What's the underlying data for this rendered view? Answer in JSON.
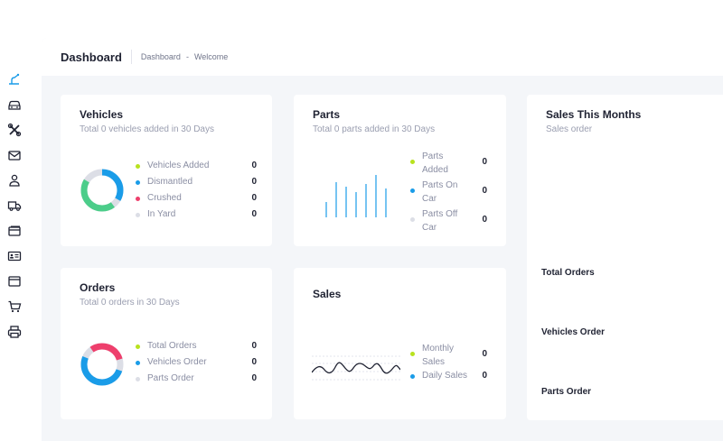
{
  "header": {
    "title": "Dashboard",
    "breadcrumb": [
      "Dashboard",
      "-",
      "Welcome"
    ]
  },
  "sidebar": {
    "icons": [
      "dashboard-icon",
      "car-icon",
      "tools-icon",
      "mail-icon",
      "user-icon",
      "truck-icon",
      "card-icon",
      "id-card-icon",
      "window-icon",
      "cart-icon",
      "printer-icon"
    ]
  },
  "colors": {
    "accent_blue": "#1a9ce8",
    "green": "#4ccd8a",
    "pink": "#ee3f6c",
    "lime": "#b8e21e",
    "grey": "#dcdee6"
  },
  "vehicles": {
    "title": "Vehicles",
    "subtitle": "Total 0 vehicles added in 30 Days",
    "legend": [
      {
        "label": "Vehicles Added",
        "value": "0",
        "color": "#b8e21e"
      },
      {
        "label": "Dismantled",
        "value": "0",
        "color": "#1a9ce8"
      },
      {
        "label": "Crushed",
        "value": "0",
        "color": "#ee3f6c"
      },
      {
        "label": "In Yard",
        "value": "0",
        "color": "#dcdee6"
      }
    ]
  },
  "parts": {
    "title": "Parts",
    "subtitle": "Total 0 parts added in 30 Days",
    "legend": [
      {
        "label_1": "Parts",
        "label_2": "Added",
        "value": "0",
        "color": "#b8e21e"
      },
      {
        "label_1": "Parts On",
        "label_2": "Car",
        "value": "0",
        "color": "#1a9ce8"
      },
      {
        "label_1": "Parts Off",
        "label_2": "Car",
        "value": "0",
        "color": "#dcdee6"
      }
    ]
  },
  "sales_months": {
    "title": "Sales This Months",
    "subtitle": "Sales order",
    "rows": [
      "Total Orders",
      "Vehicles Order",
      "Parts Order"
    ]
  },
  "orders": {
    "title": "Orders",
    "subtitle": "Total 0 orders in 30 Days",
    "legend": [
      {
        "label": "Total Orders",
        "value": "0",
        "color": "#b8e21e"
      },
      {
        "label": "Vehicles Order",
        "value": "0",
        "color": "#1a9ce8"
      },
      {
        "label": "Parts Order",
        "value": "0",
        "color": "#dcdee6"
      }
    ]
  },
  "sales": {
    "title": "Sales",
    "legend": [
      {
        "label_1": "Monthly",
        "label_2": "Sales",
        "value": "0",
        "color": "#b8e21e"
      },
      {
        "label_1": "Daily Sales",
        "label_2": "",
        "value": "0",
        "color": "#1a9ce8"
      }
    ]
  }
}
